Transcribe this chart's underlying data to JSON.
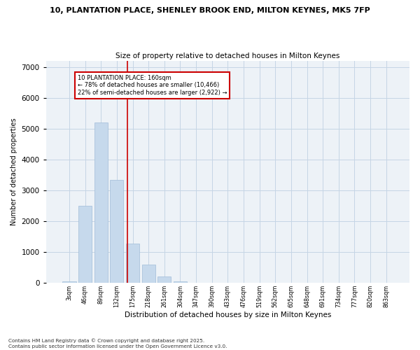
{
  "title_line1": "10, PLANTATION PLACE, SHENLEY BROOK END, MILTON KEYNES, MK5 7FP",
  "title_line2": "Size of property relative to detached houses in Milton Keynes",
  "xlabel": "Distribution of detached houses by size in Milton Keynes",
  "ylabel": "Number of detached properties",
  "bar_color": "#c6d9ec",
  "bar_edge_color": "#a0bcd8",
  "bg_color": "#edf2f7",
  "grid_color": "#c5d5e5",
  "categories": [
    "3sqm",
    "46sqm",
    "89sqm",
    "132sqm",
    "175sqm",
    "218sqm",
    "261sqm",
    "304sqm",
    "347sqm",
    "390sqm",
    "433sqm",
    "476sqm",
    "519sqm",
    "562sqm",
    "605sqm",
    "648sqm",
    "691sqm",
    "734sqm",
    "777sqm",
    "820sqm",
    "863sqm"
  ],
  "values": [
    50,
    2500,
    5200,
    3350,
    1280,
    600,
    200,
    50,
    0,
    0,
    0,
    0,
    0,
    0,
    0,
    0,
    0,
    0,
    0,
    0,
    0
  ],
  "vline_index": 3.65,
  "vline_color": "#cc0000",
  "annotation_text": "10 PLANTATION PLACE: 160sqm\n← 78% of detached houses are smaller (10,466)\n22% of semi-detached houses are larger (2,922) →",
  "ylim": [
    0,
    7200
  ],
  "yticks": [
    0,
    1000,
    2000,
    3000,
    4000,
    5000,
    6000,
    7000
  ],
  "footnote": "Contains HM Land Registry data © Crown copyright and database right 2025.\nContains public sector information licensed under the Open Government Licence v3.0."
}
